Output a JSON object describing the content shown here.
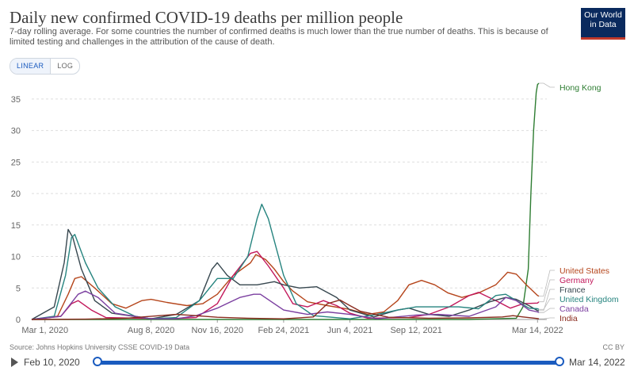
{
  "header": {
    "title": "Daily new confirmed COVID-19 deaths per million people",
    "subtitle": "7-day rolling average. For some countries the number of confirmed deaths is much lower than the true number of deaths. This is because of limited testing and challenges in the attribution of the cause of death.",
    "logo": "Our World in Data"
  },
  "scale_toggle": {
    "linear": "LINEAR",
    "log": "LOG"
  },
  "footer": {
    "source": "Source: Johns Hopkins University CSSE COVID-19 Data",
    "license": "CC BY"
  },
  "timeline": {
    "start": "Feb 10, 2020",
    "end": "Mar 14, 2022"
  },
  "chart_data": {
    "type": "line",
    "title": "Daily new confirmed COVID-19 deaths per million people",
    "ylim": [
      0,
      37.5
    ],
    "yticks": [
      0,
      5,
      10,
      15,
      20,
      25,
      30,
      35
    ],
    "xrange": [
      "2020-02-10",
      "2022-03-28"
    ],
    "xticks": [
      {
        "date": "2020-03-01",
        "label": "Mar 1, 2020"
      },
      {
        "date": "2020-08-08",
        "label": "Aug 8, 2020"
      },
      {
        "date": "2020-11-16",
        "label": "Nov 16, 2020"
      },
      {
        "date": "2021-02-24",
        "label": "Feb 24, 2021"
      },
      {
        "date": "2021-06-04",
        "label": "Jun 4, 2021"
      },
      {
        "date": "2021-09-12",
        "label": "Sep 12, 2021"
      },
      {
        "date": "2022-03-14",
        "label": "Mar 14, 2022"
      }
    ],
    "grid": true,
    "legend": "right",
    "series": [
      {
        "name": "Hong Kong",
        "color": "#2e7d32",
        "points": [
          [
            "2020-02-10",
            0
          ],
          [
            "2021-12-01",
            0
          ],
          [
            "2022-02-10",
            0.2
          ],
          [
            "2022-02-20",
            2
          ],
          [
            "2022-02-28",
            8
          ],
          [
            "2022-03-04",
            20
          ],
          [
            "2022-03-08",
            30
          ],
          [
            "2022-03-12",
            36
          ],
          [
            "2022-03-14",
            37.3
          ],
          [
            "2022-03-16",
            37.5
          ]
        ]
      },
      {
        "name": "United States",
        "color": "#b5451b",
        "points": [
          [
            "2020-02-10",
            0
          ],
          [
            "2020-03-20",
            0.5
          ],
          [
            "2020-04-05",
            4
          ],
          [
            "2020-04-15",
            6.5
          ],
          [
            "2020-04-25",
            6.8
          ],
          [
            "2020-05-15",
            5
          ],
          [
            "2020-06-10",
            2.5
          ],
          [
            "2020-07-01",
            1.8
          ],
          [
            "2020-07-25",
            3
          ],
          [
            "2020-08-08",
            3.2
          ],
          [
            "2020-09-01",
            2.7
          ],
          [
            "2020-10-01",
            2.2
          ],
          [
            "2020-10-25",
            2.5
          ],
          [
            "2020-11-16",
            4
          ],
          [
            "2020-12-10",
            7
          ],
          [
            "2021-01-05",
            9
          ],
          [
            "2021-01-13",
            10.3
          ],
          [
            "2021-01-28",
            9.5
          ],
          [
            "2021-02-10",
            8
          ],
          [
            "2021-02-24",
            6
          ],
          [
            "2021-03-10",
            4.5
          ],
          [
            "2021-04-01",
            2.8
          ],
          [
            "2021-05-01",
            2.2
          ],
          [
            "2021-06-04",
            1.6
          ],
          [
            "2021-07-01",
            0.8
          ],
          [
            "2021-07-25",
            1.2
          ],
          [
            "2021-08-15",
            3
          ],
          [
            "2021-09-01",
            5.5
          ],
          [
            "2021-09-20",
            6.2
          ],
          [
            "2021-10-10",
            5.5
          ],
          [
            "2021-10-30",
            4.2
          ],
          [
            "2021-11-20",
            3.5
          ],
          [
            "2021-12-15",
            4.2
          ],
          [
            "2022-01-10",
            5.5
          ],
          [
            "2022-01-28",
            7.5
          ],
          [
            "2022-02-10",
            7.2
          ],
          [
            "2022-02-25",
            5.5
          ],
          [
            "2022-03-14",
            3.8
          ],
          [
            "2022-03-16",
            3.7
          ]
        ]
      },
      {
        "name": "Germany",
        "color": "#c2185b",
        "points": [
          [
            "2020-02-10",
            0
          ],
          [
            "2020-03-25",
            0.5
          ],
          [
            "2020-04-10",
            2.5
          ],
          [
            "2020-04-20",
            3
          ],
          [
            "2020-05-10",
            1.5
          ],
          [
            "2020-06-01",
            0.3
          ],
          [
            "2020-09-01",
            0.1
          ],
          [
            "2020-10-15",
            0.3
          ],
          [
            "2020-11-16",
            2.5
          ],
          [
            "2020-12-10",
            7
          ],
          [
            "2021-01-05",
            10.5
          ],
          [
            "2021-01-15",
            10.8
          ],
          [
            "2021-02-01",
            8.5
          ],
          [
            "2021-02-24",
            5
          ],
          [
            "2021-03-10",
            2.5
          ],
          [
            "2021-04-01",
            2
          ],
          [
            "2021-04-25",
            3
          ],
          [
            "2021-05-15",
            2.2
          ],
          [
            "2021-06-04",
            1
          ],
          [
            "2021-07-01",
            0.2
          ],
          [
            "2021-09-01",
            0.3
          ],
          [
            "2021-10-01",
            0.8
          ],
          [
            "2021-11-01",
            2
          ],
          [
            "2021-12-01",
            3.8
          ],
          [
            "2021-12-15",
            4.3
          ],
          [
            "2022-01-10",
            3
          ],
          [
            "2022-02-01",
            1.8
          ],
          [
            "2022-02-20",
            2.5
          ],
          [
            "2022-03-14",
            2.6
          ],
          [
            "2022-03-16",
            2.8
          ]
        ]
      },
      {
        "name": "France",
        "color": "#37474f",
        "points": [
          [
            "2020-02-10",
            0
          ],
          [
            "2020-03-15",
            2
          ],
          [
            "2020-03-30",
            9
          ],
          [
            "2020-04-05",
            14.3
          ],
          [
            "2020-04-12",
            13
          ],
          [
            "2020-04-25",
            8
          ],
          [
            "2020-05-15",
            3
          ],
          [
            "2020-06-10",
            1
          ],
          [
            "2020-08-08",
            0.1
          ],
          [
            "2020-09-15",
            0.8
          ],
          [
            "2020-10-20",
            3
          ],
          [
            "2020-11-08",
            8
          ],
          [
            "2020-11-16",
            9
          ],
          [
            "2020-12-01",
            7
          ],
          [
            "2020-12-20",
            5.5
          ],
          [
            "2021-01-15",
            5.5
          ],
          [
            "2021-02-10",
            6
          ],
          [
            "2021-02-24",
            5.5
          ],
          [
            "2021-03-20",
            5
          ],
          [
            "2021-04-15",
            5.2
          ],
          [
            "2021-05-15",
            3.5
          ],
          [
            "2021-06-04",
            1.5
          ],
          [
            "2021-07-10",
            0.4
          ],
          [
            "2021-08-15",
            1.5
          ],
          [
            "2021-09-01",
            1.8
          ],
          [
            "2021-10-01",
            0.8
          ],
          [
            "2021-11-01",
            0.5
          ],
          [
            "2021-12-01",
            1.5
          ],
          [
            "2022-01-01",
            2.8
          ],
          [
            "2022-01-25",
            3.5
          ],
          [
            "2022-02-10",
            3.2
          ],
          [
            "2022-03-01",
            2.2
          ],
          [
            "2022-03-14",
            1.4
          ],
          [
            "2022-03-16",
            1.4
          ]
        ]
      },
      {
        "name": "United Kingdom",
        "color": "#26847f",
        "points": [
          [
            "2020-02-10",
            0
          ],
          [
            "2020-03-15",
            0.5
          ],
          [
            "2020-04-01",
            7
          ],
          [
            "2020-04-10",
            13
          ],
          [
            "2020-04-15",
            13.5
          ],
          [
            "2020-05-01",
            9
          ],
          [
            "2020-05-20",
            5
          ],
          [
            "2020-06-15",
            2
          ],
          [
            "2020-07-15",
            0.5
          ],
          [
            "2020-08-08",
            0.1
          ],
          [
            "2020-09-15",
            0.3
          ],
          [
            "2020-10-20",
            3
          ],
          [
            "2020-11-16",
            6.5
          ],
          [
            "2020-12-10",
            6.5
          ],
          [
            "2021-01-01",
            10
          ],
          [
            "2021-01-15",
            16
          ],
          [
            "2021-01-22",
            18.3
          ],
          [
            "2021-02-01",
            16
          ],
          [
            "2021-02-24",
            7
          ],
          [
            "2021-03-15",
            2.5
          ],
          [
            "2021-04-10",
            0.6
          ],
          [
            "2021-06-04",
            0.1
          ],
          [
            "2021-07-15",
            0.8
          ],
          [
            "2021-08-15",
            1.5
          ],
          [
            "2021-09-12",
            2
          ],
          [
            "2021-10-15",
            2
          ],
          [
            "2021-11-15",
            2
          ],
          [
            "2021-12-15",
            1.7
          ],
          [
            "2022-01-10",
            3.8
          ],
          [
            "2022-01-25",
            4
          ],
          [
            "2022-02-10",
            3
          ],
          [
            "2022-03-01",
            1.8
          ],
          [
            "2022-03-14",
            1.7
          ],
          [
            "2022-03-16",
            1.6
          ]
        ]
      },
      {
        "name": "Canada",
        "color": "#7b3fa0",
        "points": [
          [
            "2020-02-10",
            0
          ],
          [
            "2020-03-25",
            0.5
          ],
          [
            "2020-04-20",
            4
          ],
          [
            "2020-05-01",
            4.5
          ],
          [
            "2020-05-20",
            3.5
          ],
          [
            "2020-06-15",
            1
          ],
          [
            "2020-08-08",
            0.1
          ],
          [
            "2020-09-15",
            0.1
          ],
          [
            "2020-10-15",
            0.6
          ],
          [
            "2020-11-16",
            1.8
          ],
          [
            "2020-12-20",
            3.5
          ],
          [
            "2021-01-10",
            4
          ],
          [
            "2021-01-20",
            4
          ],
          [
            "2021-02-24",
            1.5
          ],
          [
            "2021-04-01",
            0.8
          ],
          [
            "2021-05-01",
            1.2
          ],
          [
            "2021-06-04",
            0.8
          ],
          [
            "2021-07-15",
            0.1
          ],
          [
            "2021-09-12",
            0.7
          ],
          [
            "2021-10-15",
            0.8
          ],
          [
            "2021-12-01",
            0.5
          ],
          [
            "2022-01-10",
            2
          ],
          [
            "2022-01-25",
            3.5
          ],
          [
            "2022-02-10",
            3
          ],
          [
            "2022-03-01",
            1.5
          ],
          [
            "2022-03-14",
            1.2
          ],
          [
            "2022-03-16",
            1.1
          ]
        ]
      },
      {
        "name": "India",
        "color": "#8a2b1e",
        "points": [
          [
            "2020-02-10",
            0
          ],
          [
            "2020-05-01",
            0.05
          ],
          [
            "2020-07-01",
            0.2
          ],
          [
            "2020-09-15",
            0.8
          ],
          [
            "2020-10-15",
            0.6
          ],
          [
            "2020-11-16",
            0.35
          ],
          [
            "2021-01-01",
            0.2
          ],
          [
            "2021-02-24",
            0.1
          ],
          [
            "2021-04-10",
            0.4
          ],
          [
            "2021-05-01",
            2.5
          ],
          [
            "2021-05-20",
            3.1
          ],
          [
            "2021-06-04",
            2.2
          ],
          [
            "2021-06-20",
            1.3
          ],
          [
            "2021-08-01",
            0.35
          ],
          [
            "2021-10-01",
            0.2
          ],
          [
            "2021-12-01",
            0.25
          ],
          [
            "2022-01-20",
            0.4
          ],
          [
            "2022-02-05",
            0.6
          ],
          [
            "2022-02-20",
            0.4
          ],
          [
            "2022-03-14",
            0.15
          ],
          [
            "2022-03-16",
            0.1
          ]
        ]
      }
    ]
  }
}
